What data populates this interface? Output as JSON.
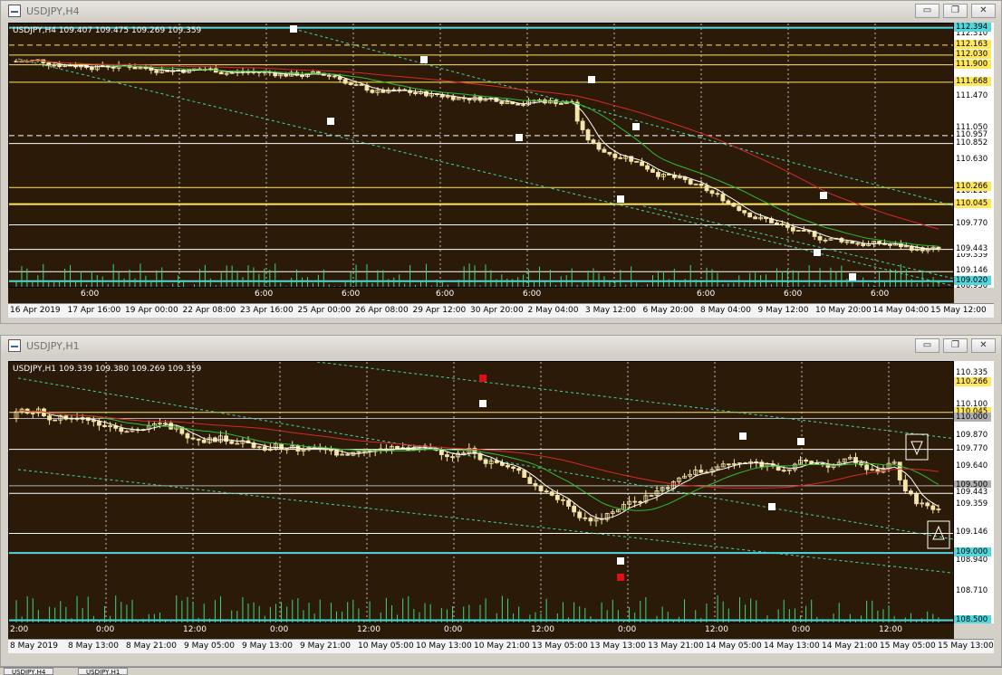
{
  "windows": [
    {
      "title": "USDJPY,H4",
      "header": "USDJPY,H4  109.407 109.475 109.269 109.359",
      "price_labels": [
        "112.310",
        "111.470",
        "111.050",
        "110.630",
        "110.210",
        "109.770",
        "109.359",
        "108.950"
      ],
      "price_badges": [
        {
          "text": "112.394",
          "color": "#4fd8e0"
        },
        {
          "text": "112.163",
          "color": "#ffe65a"
        },
        {
          "text": "112.030",
          "color": "#ffe65a"
        },
        {
          "text": "111.900",
          "color": "#ffe65a"
        },
        {
          "text": "111.668",
          "color": "#ffe65a"
        },
        {
          "text": "110.957",
          "color": "#ffffff"
        },
        {
          "text": "110.852",
          "color": "#ffffff"
        },
        {
          "text": "110.266",
          "color": "#ffe65a"
        },
        {
          "text": "110.045",
          "color": "#ffe65a"
        },
        {
          "text": "109.770",
          "color": "#ffffff"
        },
        {
          "text": "109.443",
          "color": "#ffffff"
        },
        {
          "text": "109.146",
          "color": "#ffffff"
        },
        {
          "text": "109.020",
          "color": "#4fd8e0"
        }
      ],
      "session_labels": [
        "6:00",
        "6:00",
        "6:00",
        "6:00",
        "6:00",
        "6:00",
        "6:00",
        "6:00"
      ],
      "time_labels": [
        "16 Apr 2019",
        "17 Apr 16:00",
        "19 Apr 00:00",
        "22 Apr 08:00",
        "23 Apr 16:00",
        "25 Apr 00:00",
        "26 Apr 08:00",
        "29 Apr 12:00",
        "30 Apr 20:00",
        "2 May 04:00",
        "3 May 12:00",
        "6 May 20:00",
        "8 May 04:00",
        "9 May 12:00",
        "10 May 20:00",
        "14 May 04:00",
        "15 May 12:00"
      ]
    },
    {
      "title": "USDJPY,H1",
      "header": "USDJPY,H1  109.339 109.380 109.269 109.359",
      "price_labels": [
        "110.335",
        "110.100",
        "109.870",
        "109.640",
        "109.359",
        "108.940",
        "108.710"
      ],
      "price_badges": [
        {
          "text": "110.266",
          "color": "#ffe65a"
        },
        {
          "text": "110.045",
          "color": "#ffe65a"
        },
        {
          "text": "110.000",
          "color": "#b0b0b0"
        },
        {
          "text": "109.770",
          "color": "#ffffff"
        },
        {
          "text": "109.500",
          "color": "#b0b0b0"
        },
        {
          "text": "109.443",
          "color": "#ffffff"
        },
        {
          "text": "109.146",
          "color": "#ffffff"
        },
        {
          "text": "109.000",
          "color": "#4fd8e0"
        },
        {
          "text": "108.500",
          "color": "#4fd8e0"
        }
      ],
      "time_labels": [
        "8 May 2019",
        "8 May 13:00",
        "8 May 21:00",
        "9 May 05:00",
        "9 May 13:00",
        "9 May 21:00",
        "10 May 05:00",
        "10 May 13:00",
        "10 May 21:00",
        "13 May 05:00",
        "13 May 13:00",
        "13 May 21:00",
        "14 May 05:00",
        "14 May 13:00",
        "14 May 21:00",
        "15 May 05:00",
        "15 May 13:00"
      ],
      "session_labels": [
        "2:00",
        "0:00",
        "12:00",
        "0:00",
        "12:00",
        "0:00",
        "12:00",
        "0:00",
        "12:00",
        "0:00",
        "12:00"
      ]
    }
  ],
  "window_buttons": {
    "minimize": "▭",
    "restore": "❐",
    "close": "✕"
  },
  "tabs": [
    "USDJPY,H4",
    "USDJPY,H1"
  ],
  "colors": {
    "background": "#2b1a08",
    "candle": "#f5e6a8",
    "ma_fast": "#ffffff",
    "ma_mid": "#2fbf2f",
    "ma_slow": "#d42a2a",
    "level_yellow": "#ffe65a",
    "level_cyan": "#4fd8e0",
    "channel": "#3fd6a8"
  }
}
